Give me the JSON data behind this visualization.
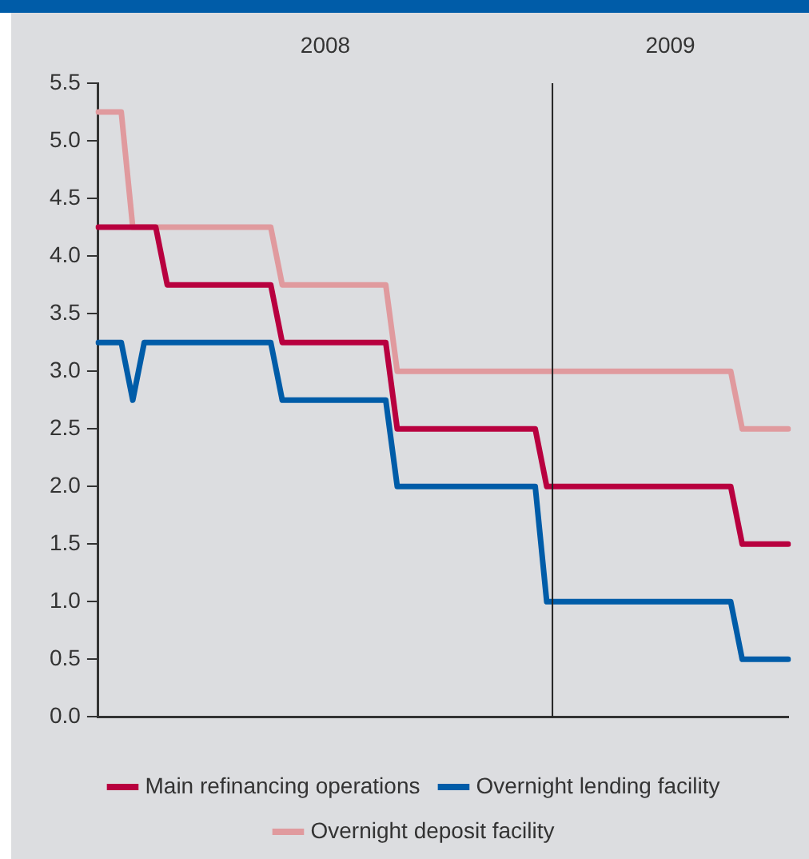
{
  "chart_data": {
    "type": "line",
    "categories": [
      null,
      null,
      null,
      null,
      null,
      null,
      null,
      null,
      null,
      null,
      null,
      null,
      null,
      null,
      null,
      null,
      null,
      null,
      null,
      null,
      null,
      null,
      null,
      null,
      null,
      null,
      null,
      null,
      null,
      null,
      null,
      null,
      null,
      null,
      null,
      null,
      null,
      null,
      null,
      null,
      null,
      null,
      null,
      null,
      null,
      null,
      null,
      null,
      null,
      null,
      null,
      null,
      null,
      null,
      null,
      null,
      null,
      null,
      null,
      null,
      null
    ],
    "ylim": [
      0,
      5.5
    ],
    "yticks": [
      {
        "value": 0,
        "label": "0.0"
      },
      {
        "value": 0.5,
        "label": "0.5"
      },
      {
        "value": 1,
        "label": "1.0"
      },
      {
        "value": 1.5,
        "label": "1.5"
      },
      {
        "value": 2,
        "label": "2.0"
      },
      {
        "value": 2.5,
        "label": "2.5"
      },
      {
        "value": 3,
        "label": "3.0"
      },
      {
        "value": 3.5,
        "label": "3.5"
      },
      {
        "value": 4,
        "label": "4.0"
      },
      {
        "value": 4.5,
        "label": "4.5"
      },
      {
        "value": 5,
        "label": "5.0"
      },
      {
        "value": 5.5,
        "label": "5.5"
      }
    ],
    "series": [
      {
        "name": "Main refinancing operations",
        "color": "#b8003f",
        "values": [
          4.25,
          4.25,
          4.25,
          4.25,
          4.25,
          4.25,
          3.75,
          3.75,
          3.75,
          3.75,
          3.75,
          3.75,
          3.75,
          3.75,
          3.75,
          3.75,
          3.25,
          3.25,
          3.25,
          3.25,
          3.25,
          3.25,
          3.25,
          3.25,
          3.25,
          3.25,
          2.5,
          2.5,
          2.5,
          2.5,
          2.5,
          2.5,
          2.5,
          2.5,
          2.5,
          2.5,
          2.5,
          2.5,
          2.5,
          2.0,
          2.0,
          2.0,
          2.0,
          2.0,
          2.0,
          2.0,
          2.0,
          2.0,
          2.0,
          2.0,
          2.0,
          2.0,
          2.0,
          2.0,
          2.0,
          2.0,
          1.5,
          1.5,
          1.5,
          1.5,
          1.5
        ]
      },
      {
        "name": "Overnight lending facility",
        "color": "#005ca8",
        "values": [
          3.25,
          3.25,
          3.25,
          2.75,
          3.25,
          3.25,
          3.25,
          3.25,
          3.25,
          3.25,
          3.25,
          3.25,
          3.25,
          3.25,
          3.25,
          3.25,
          2.75,
          2.75,
          2.75,
          2.75,
          2.75,
          2.75,
          2.75,
          2.75,
          2.75,
          2.75,
          2.0,
          2.0,
          2.0,
          2.0,
          2.0,
          2.0,
          2.0,
          2.0,
          2.0,
          2.0,
          2.0,
          2.0,
          2.0,
          1.0,
          1.0,
          1.0,
          1.0,
          1.0,
          1.0,
          1.0,
          1.0,
          1.0,
          1.0,
          1.0,
          1.0,
          1.0,
          1.0,
          1.0,
          1.0,
          1.0,
          0.5,
          0.5,
          0.5,
          0.5,
          0.5
        ]
      },
      {
        "name": "Overnight deposit facility",
        "color": "#e09a9e",
        "values": [
          5.25,
          5.25,
          5.25,
          4.25,
          4.25,
          4.25,
          4.25,
          4.25,
          4.25,
          4.25,
          4.25,
          4.25,
          4.25,
          4.25,
          4.25,
          4.25,
          3.75,
          3.75,
          3.75,
          3.75,
          3.75,
          3.75,
          3.75,
          3.75,
          3.75,
          3.75,
          3.0,
          3.0,
          3.0,
          3.0,
          3.0,
          3.0,
          3.0,
          3.0,
          3.0,
          3.0,
          3.0,
          3.0,
          3.0,
          3.0,
          3.0,
          3.0,
          3.0,
          3.0,
          3.0,
          3.0,
          3.0,
          3.0,
          3.0,
          3.0,
          3.0,
          3.0,
          3.0,
          3.0,
          3.0,
          3.0,
          2.5,
          2.5,
          2.5,
          2.5,
          2.5
        ]
      }
    ],
    "annotations": [
      "2008",
      "2009"
    ],
    "grid": false,
    "legend": "bottom",
    "marker": "none",
    "line_style": "solid"
  }
}
